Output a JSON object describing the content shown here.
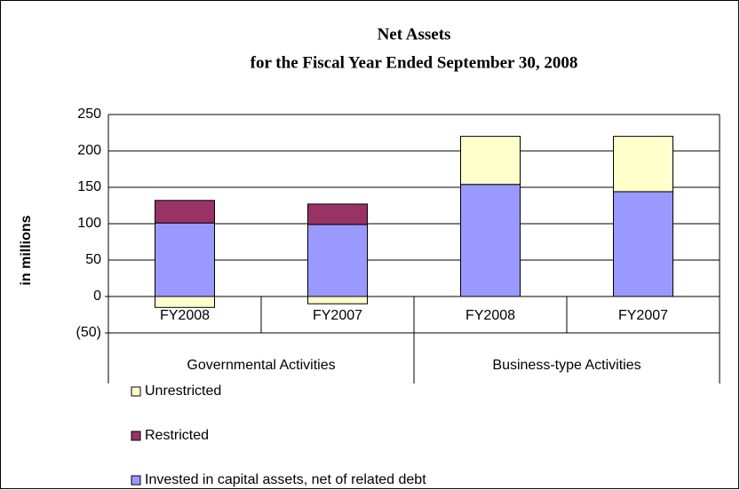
{
  "chart_data": {
    "type": "stacked_bar",
    "title": "Net Assets",
    "subtitle": "for the Fiscal Year Ended September 30, 2008",
    "y_label": "in millions",
    "categories": [
      "FY2008",
      "FY2007",
      "FY2008",
      "FY2007"
    ],
    "groups": [
      "Governmental Activities",
      "Business-type Activities"
    ],
    "series": [
      {
        "name": "Invested in capital assets, net of related debt",
        "color": "#9999ff",
        "values": [
          101,
          99,
          154,
          144
        ]
      },
      {
        "name": "Restricted",
        "color": "#993366",
        "values": [
          31,
          28,
          0,
          0
        ]
      },
      {
        "name": "Unrestricted",
        "color": "#ffffcc",
        "values": [
          -15,
          -10,
          66,
          76
        ]
      }
    ],
    "ylim": [
      -50,
      250
    ],
    "yticks": [
      {
        "value": -50,
        "label": "(50)"
      },
      0,
      50,
      100,
      150,
      200,
      250
    ],
    "negative_tick_color": "#ff0000",
    "grid": true,
    "legend_reversed": true
  }
}
